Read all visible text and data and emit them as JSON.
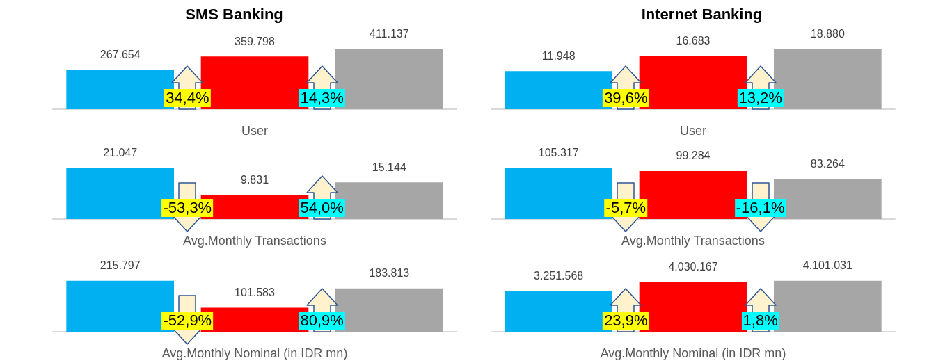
{
  "chart_data": [
    {
      "type": "bar",
      "title": "SMS Banking",
      "xlabel": "User",
      "categories": [
        null,
        null,
        null
      ],
      "values": [
        267654,
        359798,
        411137
      ],
      "colors": [
        "#00b0f0",
        "#ff0000",
        "#a6a6a6"
      ],
      "value_labels": [
        "267.654",
        "359.798",
        "411.137"
      ],
      "annotations": [
        "34,4%",
        "14,3%"
      ]
    },
    {
      "type": "bar",
      "title": "Internet Banking",
      "xlabel": "User",
      "categories": [
        null,
        null,
        null
      ],
      "values": [
        11948,
        16683,
        18880
      ],
      "colors": [
        "#00b0f0",
        "#ff0000",
        "#a6a6a6"
      ],
      "value_labels": [
        "11.948",
        "16.683",
        "18.880"
      ],
      "annotations": [
        "39,6%",
        "13,2%"
      ]
    },
    {
      "type": "bar",
      "xlabel": "Avg.Monthly Transactions",
      "categories": [
        null,
        null,
        null
      ],
      "values": [
        21047,
        9831,
        15144
      ],
      "colors": [
        "#00b0f0",
        "#ff0000",
        "#a6a6a6"
      ],
      "value_labels": [
        "21.047",
        "9.831",
        "15.144"
      ],
      "annotations": [
        "-53,3%",
        "54,0%"
      ]
    },
    {
      "type": "bar",
      "xlabel": "Avg.Monthly Transactions",
      "categories": [
        null,
        null,
        null
      ],
      "values": [
        105317,
        99284,
        83264
      ],
      "colors": [
        "#00b0f0",
        "#ff0000",
        "#a6a6a6"
      ],
      "value_labels": [
        "105.317",
        "99.284",
        "83.264"
      ],
      "annotations": [
        "-5,7%",
        "-16,1%"
      ]
    },
    {
      "type": "bar",
      "xlabel": "Avg.Monthly Nominal (in IDR mn)",
      "categories": [
        null,
        null,
        null
      ],
      "values": [
        215797,
        101583,
        183813
      ],
      "colors": [
        "#00b0f0",
        "#ff0000",
        "#a6a6a6"
      ],
      "value_labels": [
        "215.797",
        "101.583",
        "183.813"
      ],
      "annotations": [
        "-52,9%",
        "80,9%"
      ]
    },
    {
      "type": "bar",
      "xlabel": "Avg.Monthly Nominal (in IDR mn)",
      "categories": [
        null,
        null,
        null
      ],
      "values": [
        3251568,
        4030167,
        4101031
      ],
      "colors": [
        "#00b0f0",
        "#ff0000",
        "#a6a6a6"
      ],
      "value_labels": [
        "3.251.568",
        "4.030.167",
        "4.101.031"
      ],
      "annotations": [
        "23,9%",
        "1,8%"
      ]
    }
  ]
}
